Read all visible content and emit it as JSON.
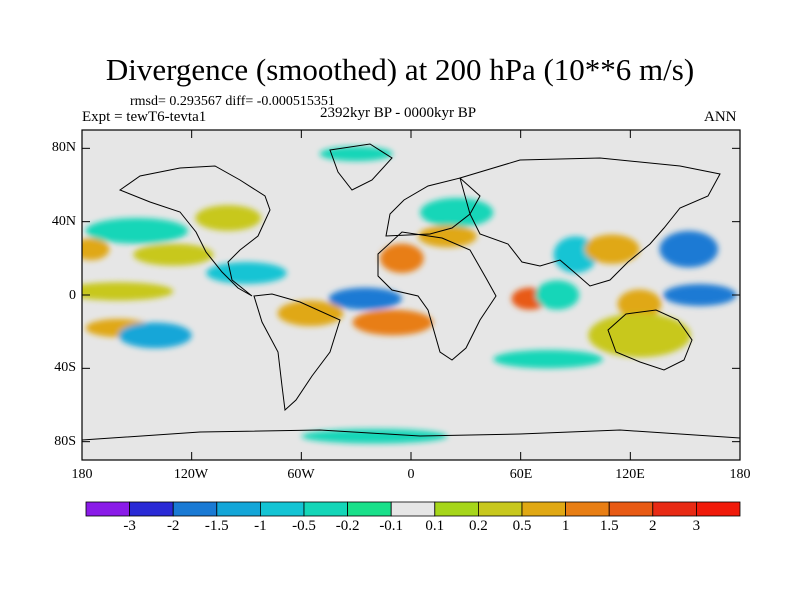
{
  "title": "Divergence (smoothed) at 200 hPa (10**6 m/s)",
  "stats": {
    "rmsd_label": "rmsd= 0.293567 diff= -0.000515351"
  },
  "experiment_label": "Expt = tewT6-tevta1",
  "period_label": "2392kyr BP - 0000kyr BP",
  "season_label": "ANN",
  "lat_ticks": [
    "80N",
    "40N",
    "0",
    "40S",
    "80S"
  ],
  "lon_ticks": [
    "180",
    "120W",
    "60W",
    "0",
    "60E",
    "120E",
    "180"
  ],
  "colorbar": {
    "labels": [
      "-3",
      "-2",
      "-1.5",
      "-1",
      "-0.5",
      "-0.2",
      "-0.1",
      "0.1",
      "0.2",
      "0.5",
      "1",
      "1.5",
      "2",
      "3"
    ],
    "colors": [
      "#8a1be8",
      "#2a2ad6",
      "#1a7ad4",
      "#13a6d8",
      "#14c4d4",
      "#14d6b8",
      "#19e08a",
      "#e6e6e6",
      "#a6d61a",
      "#c8c81e",
      "#e0a814",
      "#e87e14",
      "#e85a14",
      "#e82a14",
      "#f01a0a"
    ]
  },
  "map": {
    "ocean_color": "#e6e6e6",
    "regions": [
      {
        "name": "eq-pacific-west-high",
        "color": "#c8c81e",
        "lon": -160,
        "lat": 2,
        "rx": 30,
        "ry": 5
      },
      {
        "name": "nh-pacific-low",
        "color": "#14d6b8",
        "lon": -150,
        "lat": 35,
        "rx": 28,
        "ry": 7
      },
      {
        "name": "nh-pacific-high",
        "color": "#c8c81e",
        "lon": -130,
        "lat": 22,
        "rx": 22,
        "ry": 6
      },
      {
        "name": "west-pacific-high",
        "color": "#e0a814",
        "lon": -175,
        "lat": 25,
        "rx": 10,
        "ry": 6
      },
      {
        "name": "sh-pacific-high",
        "color": "#e0a814",
        "lon": -160,
        "lat": -18,
        "rx": 18,
        "ry": 5
      },
      {
        "name": "sh-pacific-low",
        "color": "#13a6d8",
        "lon": -140,
        "lat": -22,
        "rx": 20,
        "ry": 7
      },
      {
        "name": "central-america-low",
        "color": "#14c4d4",
        "lon": -90,
        "lat": 12,
        "rx": 22,
        "ry": 6
      },
      {
        "name": "atlantic-tropical-low",
        "color": "#1a7ad4",
        "lon": -25,
        "lat": -2,
        "rx": 20,
        "ry": 6
      },
      {
        "name": "south-atlantic-high",
        "color": "#e87e14",
        "lon": -10,
        "lat": -15,
        "rx": 22,
        "ry": 7
      },
      {
        "name": "south-america-high",
        "color": "#e0a814",
        "lon": -55,
        "lat": -10,
        "rx": 18,
        "ry": 7
      },
      {
        "name": "north-africa-high",
        "color": "#e87e14",
        "lon": -5,
        "lat": 20,
        "rx": 12,
        "ry": 8
      },
      {
        "name": "europe-low",
        "color": "#14d6b8",
        "lon": 25,
        "lat": 45,
        "rx": 20,
        "ry": 8
      },
      {
        "name": "mediterranean-high",
        "color": "#e0a814",
        "lon": 20,
        "lat": 32,
        "rx": 16,
        "ry": 6
      },
      {
        "name": "indian-ocean-high",
        "color": "#e85a14",
        "lon": 65,
        "lat": -2,
        "rx": 10,
        "ry": 6
      },
      {
        "name": "indian-ocean-low",
        "color": "#14d6b8",
        "lon": 80,
        "lat": 0,
        "rx": 12,
        "ry": 8
      },
      {
        "name": "asia-monsoon-low",
        "color": "#14c4d4",
        "lon": 90,
        "lat": 22,
        "rx": 12,
        "ry": 10
      },
      {
        "name": "east-asia-high",
        "color": "#e0a814",
        "lon": 110,
        "lat": 25,
        "rx": 15,
        "ry": 8
      },
      {
        "name": "nw-pacific-low",
        "color": "#1a7ad4",
        "lon": 152,
        "lat": 25,
        "rx": 16,
        "ry": 10
      },
      {
        "name": "maritime-continent-high",
        "color": "#e0a814",
        "lon": 125,
        "lat": -5,
        "rx": 12,
        "ry": 8
      },
      {
        "name": "west-pacific-eq-low",
        "color": "#1a7ad4",
        "lon": 158,
        "lat": 0,
        "rx": 20,
        "ry": 6
      },
      {
        "name": "australia-high",
        "color": "#c8c81e",
        "lon": 125,
        "lat": -22,
        "rx": 28,
        "ry": 12
      },
      {
        "name": "sh-westerly-low",
        "color": "#14d6b8",
        "lon": 75,
        "lat": -35,
        "rx": 30,
        "ry": 5
      },
      {
        "name": "antarctic-low",
        "color": "#14d6b8",
        "lon": -20,
        "lat": -77,
        "rx": 40,
        "ry": 4
      },
      {
        "name": "arctic-low",
        "color": "#14d6b8",
        "lon": -30,
        "lat": 77,
        "rx": 20,
        "ry": 4
      },
      {
        "name": "north-america-high",
        "color": "#c8c81e",
        "lon": -100,
        "lat": 42,
        "rx": 18,
        "ry": 7
      }
    ]
  }
}
